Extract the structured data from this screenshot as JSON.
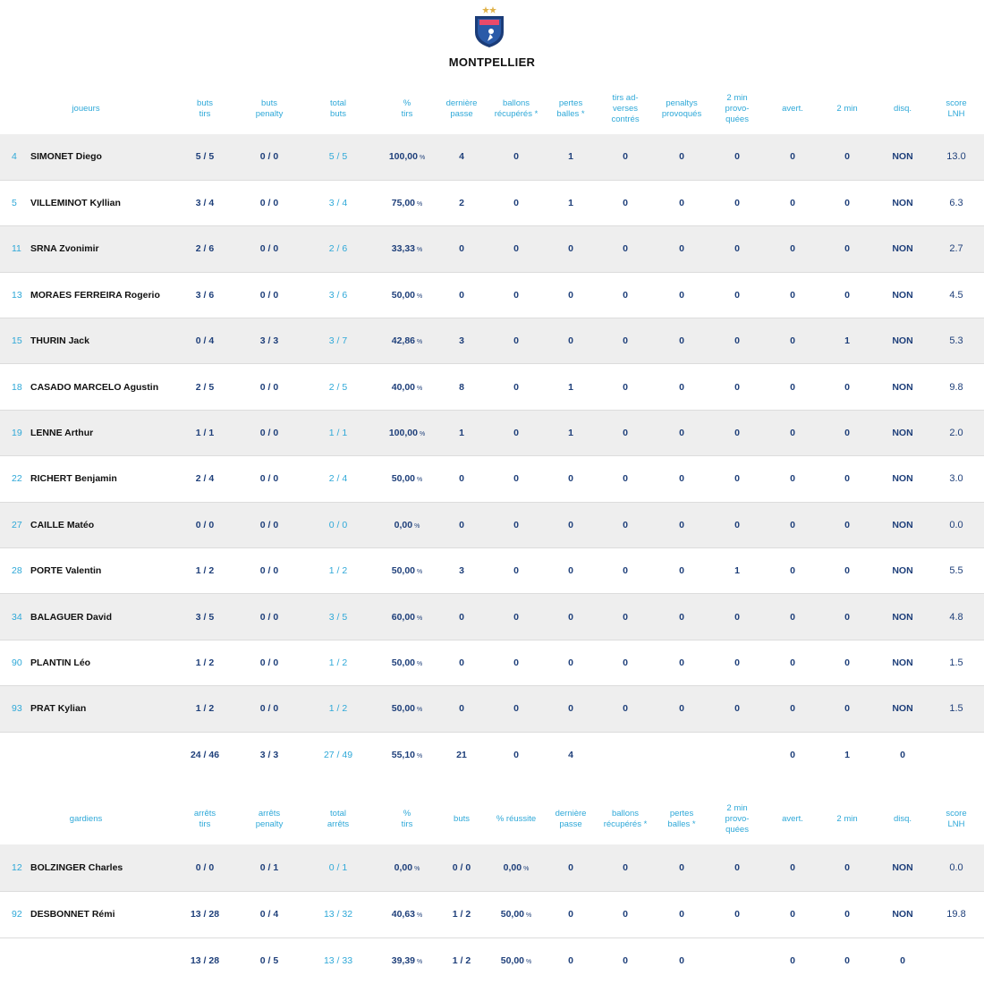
{
  "team": {
    "name": "MONTPELLIER"
  },
  "players": {
    "headers": {
      "name": "joueurs",
      "cols": [
        "buts\ntirs",
        "buts\npenalty",
        "total\nbuts",
        "%\ntirs",
        "dernière\npasse",
        "ballons\nrécupérés *",
        "pertes\nballes *",
        "tirs ad-\nverses\ncontrés",
        "penaltys\nprovoqués",
        "2 min\nprovo-\nquées",
        "avert.",
        "2 min",
        "disq.",
        "score\nLNH"
      ]
    },
    "rows": [
      {
        "num": "4",
        "name": "SIMONET Diego",
        "cols": [
          "5 / 5",
          "0 / 0",
          "5 / 5",
          "100,00",
          "4",
          "0",
          "1",
          "0",
          "0",
          "0",
          "0",
          "0",
          "NON",
          "13.0"
        ]
      },
      {
        "num": "5",
        "name": "VILLEMINOT Kyllian",
        "cols": [
          "3 / 4",
          "0 / 0",
          "3 / 4",
          "75,00",
          "2",
          "0",
          "1",
          "0",
          "0",
          "0",
          "0",
          "0",
          "NON",
          "6.3"
        ]
      },
      {
        "num": "11",
        "name": "SRNA Zvonimir",
        "cols": [
          "2 / 6",
          "0 / 0",
          "2 / 6",
          "33,33",
          "0",
          "0",
          "0",
          "0",
          "0",
          "0",
          "0",
          "0",
          "NON",
          "2.7"
        ]
      },
      {
        "num": "13",
        "name": "MORAES FERREIRA Rogerio",
        "cols": [
          "3 / 6",
          "0 / 0",
          "3 / 6",
          "50,00",
          "0",
          "0",
          "0",
          "0",
          "0",
          "0",
          "0",
          "0",
          "NON",
          "4.5"
        ]
      },
      {
        "num": "15",
        "name": "THURIN Jack",
        "cols": [
          "0 / 4",
          "3 / 3",
          "3 / 7",
          "42,86",
          "3",
          "0",
          "0",
          "0",
          "0",
          "0",
          "0",
          "1",
          "NON",
          "5.3"
        ]
      },
      {
        "num": "18",
        "name": "CASADO MARCELO Agustin",
        "cols": [
          "2 / 5",
          "0 / 0",
          "2 / 5",
          "40,00",
          "8",
          "0",
          "1",
          "0",
          "0",
          "0",
          "0",
          "0",
          "NON",
          "9.8"
        ]
      },
      {
        "num": "19",
        "name": "LENNE Arthur",
        "cols": [
          "1 / 1",
          "0 / 0",
          "1 / 1",
          "100,00",
          "1",
          "0",
          "1",
          "0",
          "0",
          "0",
          "0",
          "0",
          "NON",
          "2.0"
        ]
      },
      {
        "num": "22",
        "name": "RICHERT Benjamin",
        "cols": [
          "2 / 4",
          "0 / 0",
          "2 / 4",
          "50,00",
          "0",
          "0",
          "0",
          "0",
          "0",
          "0",
          "0",
          "0",
          "NON",
          "3.0"
        ]
      },
      {
        "num": "27",
        "name": "CAILLE Matéo",
        "cols": [
          "0 / 0",
          "0 / 0",
          "0 / 0",
          "0,00",
          "0",
          "0",
          "0",
          "0",
          "0",
          "0",
          "0",
          "0",
          "NON",
          "0.0"
        ]
      },
      {
        "num": "28",
        "name": "PORTE Valentin",
        "cols": [
          "1 / 2",
          "0 / 0",
          "1 / 2",
          "50,00",
          "3",
          "0",
          "0",
          "0",
          "0",
          "1",
          "0",
          "0",
          "NON",
          "5.5"
        ]
      },
      {
        "num": "34",
        "name": "BALAGUER David",
        "cols": [
          "3 / 5",
          "0 / 0",
          "3 / 5",
          "60,00",
          "0",
          "0",
          "0",
          "0",
          "0",
          "0",
          "0",
          "0",
          "NON",
          "4.8"
        ]
      },
      {
        "num": "90",
        "name": "PLANTIN Léo",
        "cols": [
          "1 / 2",
          "0 / 0",
          "1 / 2",
          "50,00",
          "0",
          "0",
          "0",
          "0",
          "0",
          "0",
          "0",
          "0",
          "NON",
          "1.5"
        ]
      },
      {
        "num": "93",
        "name": "PRAT Kylian",
        "cols": [
          "1 / 2",
          "0 / 0",
          "1 / 2",
          "50,00",
          "0",
          "0",
          "0",
          "0",
          "0",
          "0",
          "0",
          "0",
          "NON",
          "1.5"
        ]
      }
    ],
    "totals": [
      "24 / 46",
      "3 / 3",
      "27 / 49",
      "55,10",
      "21",
      "0",
      "4",
      "",
      "",
      "",
      "0",
      "1",
      "0",
      ""
    ]
  },
  "goalkeepers": {
    "headers": {
      "name": "gardiens",
      "cols": [
        "arrêts\ntirs",
        "arrêts\npenalty",
        "total\narrêts",
        "%\ntirs",
        "buts",
        "% réussite",
        "dernière\npasse",
        "ballons\nrécupérés *",
        "pertes\nballes *",
        "2 min\nprovo-\nquées",
        "avert.",
        "2 min",
        "disq.",
        "score\nLNH"
      ]
    },
    "rows": [
      {
        "num": "12",
        "name": "BOLZINGER Charles",
        "cols": [
          "0 / 0",
          "0 / 1",
          "0 / 1",
          "0,00",
          "0 / 0",
          "0,00",
          "0",
          "0",
          "0",
          "0",
          "0",
          "0",
          "NON",
          "0.0"
        ]
      },
      {
        "num": "92",
        "name": "DESBONNET Rémi",
        "cols": [
          "13 / 28",
          "0 / 4",
          "13 / 32",
          "40,63",
          "1 / 2",
          "50,00",
          "0",
          "0",
          "0",
          "0",
          "0",
          "0",
          "NON",
          "19.8"
        ]
      }
    ],
    "totals": [
      "13 / 28",
      "0 / 5",
      "13 / 33",
      "39,39",
      "1 / 2",
      "50,00",
      "0",
      "0",
      "0",
      "",
      "0",
      "0",
      "0",
      ""
    ]
  },
  "percent_sign": "%"
}
